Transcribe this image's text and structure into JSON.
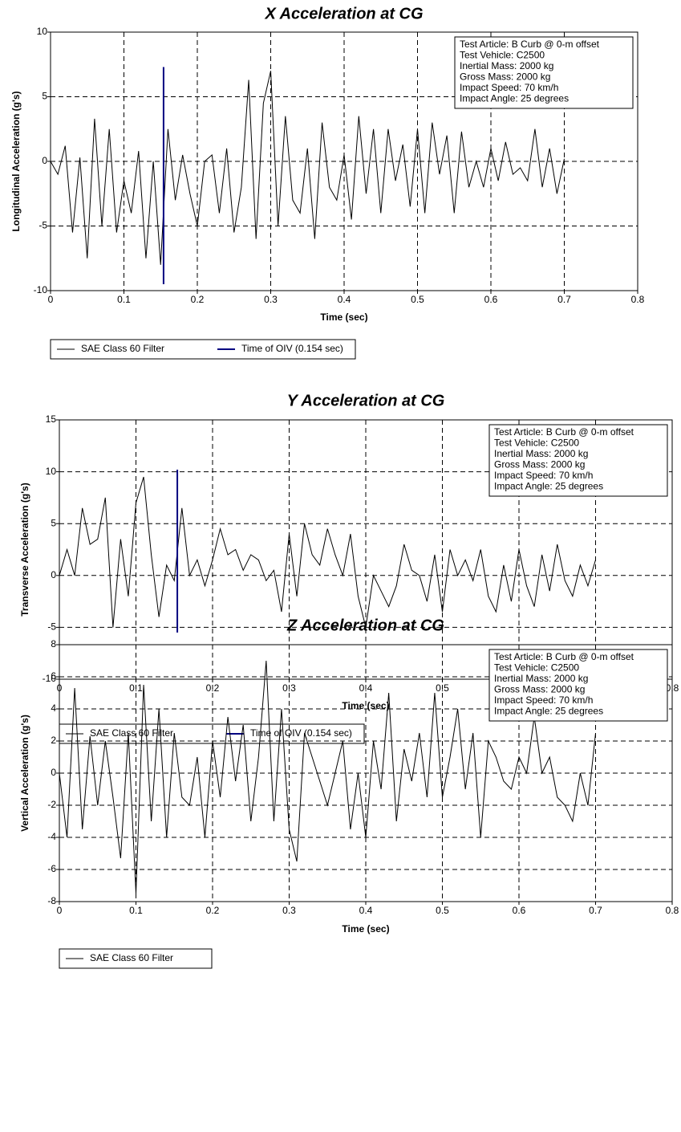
{
  "chart_data": [
    {
      "type": "line",
      "title": "X Acceleration at CG",
      "xlabel": "Time (sec)",
      "ylabel": "Longitudinal Acceleration (g's)",
      "x": [
        0,
        0.01,
        0.02,
        0.03,
        0.04,
        0.05,
        0.06,
        0.07,
        0.08,
        0.09,
        0.1,
        0.11,
        0.12,
        0.13,
        0.14,
        0.15,
        0.16,
        0.17,
        0.18,
        0.19,
        0.2,
        0.21,
        0.22,
        0.23,
        0.24,
        0.25,
        0.26,
        0.27,
        0.28,
        0.29,
        0.3,
        0.31,
        0.32,
        0.33,
        0.34,
        0.35,
        0.36,
        0.37,
        0.38,
        0.39,
        0.4,
        0.41,
        0.42,
        0.43,
        0.44,
        0.45,
        0.46,
        0.47,
        0.48,
        0.49,
        0.5,
        0.51,
        0.52,
        0.53,
        0.54,
        0.55,
        0.56,
        0.57,
        0.58,
        0.59,
        0.6,
        0.61,
        0.62,
        0.63,
        0.64,
        0.65,
        0.66,
        0.67,
        0.68,
        0.69,
        0.7
      ],
      "series": [
        {
          "name": "SAE Class 60 Filter",
          "color": "#000000",
          "values": [
            0,
            -1,
            1.2,
            -5.5,
            0.3,
            -7.5,
            3.3,
            -5,
            2.5,
            -5.5,
            -1.5,
            -4,
            0.8,
            -7.5,
            0,
            -8,
            2.5,
            -3,
            0.5,
            -2.5,
            -5,
            0,
            0.5,
            -4,
            1,
            -5.5,
            -2,
            6.3,
            -6,
            4.5,
            7,
            -5,
            3.5,
            -3,
            -4,
            1,
            -6,
            3,
            -2,
            -3,
            0.5,
            -4.5,
            3.5,
            -2.5,
            2.5,
            -4,
            2.5,
            -1.5,
            1.3,
            -3.5,
            2.5,
            -4,
            3,
            -1,
            2,
            -4,
            2.3,
            -2,
            0,
            -2,
            1,
            -1.5,
            1.5,
            -1,
            -0.5,
            -1.5,
            2.5,
            -2,
            1,
            -2.5,
            0.2
          ]
        },
        {
          "name": "Time of OIV (0.154 sec)",
          "color": "#000080",
          "x": [
            0.154,
            0.154
          ],
          "values": [
            -9.5,
            7.3
          ]
        }
      ],
      "xlim": [
        0,
        0.8
      ],
      "ylim": [
        -10,
        10
      ],
      "xticks": [
        0,
        0.1,
        0.2,
        0.3,
        0.4,
        0.5,
        0.6,
        0.7,
        0.8
      ],
      "yticks": [
        -10,
        -5,
        0,
        5,
        10
      ],
      "grid": true,
      "annotations": [
        "Test Article: B Curb @ 0-m offset",
        "Test Vehicle: C2500",
        "Inertial Mass: 2000 kg",
        "Gross Mass: 2000 kg",
        "Impact Speed: 70 km/h",
        "Impact Angle: 25 degrees"
      ]
    },
    {
      "type": "line",
      "title": "Y Acceleration at CG",
      "xlabel": "Time (sec)",
      "ylabel": "Transverse Acceleration (g's)",
      "x": [
        0,
        0.01,
        0.02,
        0.03,
        0.04,
        0.05,
        0.06,
        0.07,
        0.08,
        0.09,
        0.1,
        0.11,
        0.12,
        0.13,
        0.14,
        0.15,
        0.16,
        0.17,
        0.18,
        0.19,
        0.2,
        0.21,
        0.22,
        0.23,
        0.24,
        0.25,
        0.26,
        0.27,
        0.28,
        0.29,
        0.3,
        0.31,
        0.32,
        0.33,
        0.34,
        0.35,
        0.36,
        0.37,
        0.38,
        0.39,
        0.4,
        0.41,
        0.42,
        0.43,
        0.44,
        0.45,
        0.46,
        0.47,
        0.48,
        0.49,
        0.5,
        0.51,
        0.52,
        0.53,
        0.54,
        0.55,
        0.56,
        0.57,
        0.58,
        0.59,
        0.6,
        0.61,
        0.62,
        0.63,
        0.64,
        0.65,
        0.66,
        0.67,
        0.68,
        0.69,
        0.7
      ],
      "series": [
        {
          "name": "SAE Class 60 Filter",
          "color": "#000000",
          "values": [
            0,
            2.5,
            0,
            6.5,
            3,
            3.5,
            7.5,
            -5,
            3.5,
            -2,
            7,
            9.5,
            2,
            -4,
            1,
            -0.5,
            6.5,
            0,
            1.5,
            -1,
            1.5,
            4.5,
            2,
            2.5,
            0.5,
            2,
            1.5,
            -0.5,
            0.5,
            -3.5,
            4,
            -2,
            5,
            2,
            1,
            4.5,
            2,
            0,
            4,
            -2,
            -5,
            0,
            -1.5,
            -3,
            -1,
            3,
            0.5,
            0,
            -2.5,
            2,
            -3.5,
            2.5,
            0,
            1.5,
            -0.5,
            2.5,
            -2,
            -3.5,
            1,
            -2.5,
            2.5,
            -1,
            -3,
            2,
            -1.5,
            3,
            -0.5,
            -2,
            1,
            -1,
            1.5
          ]
        },
        {
          "name": "Time of OIV (0.154 sec)",
          "color": "#000080",
          "x": [
            0.154,
            0.154
          ],
          "values": [
            -5.5,
            10.2
          ]
        }
      ],
      "xlim": [
        0,
        0.8
      ],
      "ylim": [
        -10,
        15
      ],
      "xticks": [
        0,
        0.1,
        0.2,
        0.3,
        0.4,
        0.5,
        0.6,
        0.7,
        0.8
      ],
      "yticks": [
        -10,
        -5,
        0,
        5,
        10,
        15
      ],
      "grid": true,
      "annotations": [
        "Test Article: B Curb @ 0-m offset",
        "Test Vehicle: C2500",
        "Inertial Mass: 2000 kg",
        "Gross Mass: 2000 kg",
        "Impact Speed: 70 km/h",
        "Impact Angle: 25 degrees"
      ]
    },
    {
      "type": "line",
      "title": "Z Acceleration at CG",
      "xlabel": "Time (sec)",
      "ylabel": "Vertical Acceleration (g's)",
      "x": [
        0,
        0.01,
        0.02,
        0.03,
        0.04,
        0.05,
        0.06,
        0.07,
        0.08,
        0.09,
        0.1,
        0.11,
        0.12,
        0.13,
        0.14,
        0.15,
        0.16,
        0.17,
        0.18,
        0.19,
        0.2,
        0.21,
        0.22,
        0.23,
        0.24,
        0.25,
        0.26,
        0.27,
        0.28,
        0.29,
        0.3,
        0.31,
        0.32,
        0.33,
        0.34,
        0.35,
        0.36,
        0.37,
        0.38,
        0.39,
        0.4,
        0.41,
        0.42,
        0.43,
        0.44,
        0.45,
        0.46,
        0.47,
        0.48,
        0.49,
        0.5,
        0.51,
        0.52,
        0.53,
        0.54,
        0.55,
        0.56,
        0.57,
        0.58,
        0.59,
        0.6,
        0.61,
        0.62,
        0.63,
        0.64,
        0.65,
        0.66,
        0.67,
        0.68,
        0.69,
        0.7
      ],
      "series": [
        {
          "name": "SAE Class 60 Filter",
          "color": "#000000",
          "values": [
            0,
            -4,
            5.3,
            -3.5,
            2.3,
            -2,
            2,
            -1.5,
            -5.3,
            2.5,
            -7.5,
            5.5,
            -3,
            4,
            -4,
            2.5,
            -1.5,
            -2,
            1,
            -4,
            2,
            -1.5,
            3.5,
            -0.5,
            3,
            -3,
            1,
            7,
            -3,
            4,
            -3.5,
            -5.5,
            2.5,
            1,
            -0.5,
            -2,
            0,
            2,
            -3.5,
            0,
            -4,
            2,
            -1,
            5,
            -3,
            1.5,
            -0.5,
            2.5,
            -1.5,
            5,
            -1.5,
            1,
            4,
            -1,
            2.5,
            -4,
            2,
            1,
            -0.5,
            -1,
            1,
            0,
            3.5,
            0,
            1,
            -1.5,
            -2,
            -3,
            0,
            -2,
            2.5
          ]
        }
      ],
      "xlim": [
        0,
        0.8
      ],
      "ylim": [
        -8,
        8
      ],
      "xticks": [
        0,
        0.1,
        0.2,
        0.3,
        0.4,
        0.5,
        0.6,
        0.7,
        0.8
      ],
      "yticks": [
        -8,
        -6,
        -4,
        -2,
        0,
        2,
        4,
        6,
        8
      ],
      "grid": true,
      "annotations": [
        "Test Article: B Curb @ 0-m offset",
        "Test Vehicle: C2500",
        "Inertial Mass: 2000 kg",
        "Gross Mass: 2000 kg",
        "Impact Speed: 70 km/h",
        "Impact Angle: 25 degrees"
      ]
    }
  ]
}
